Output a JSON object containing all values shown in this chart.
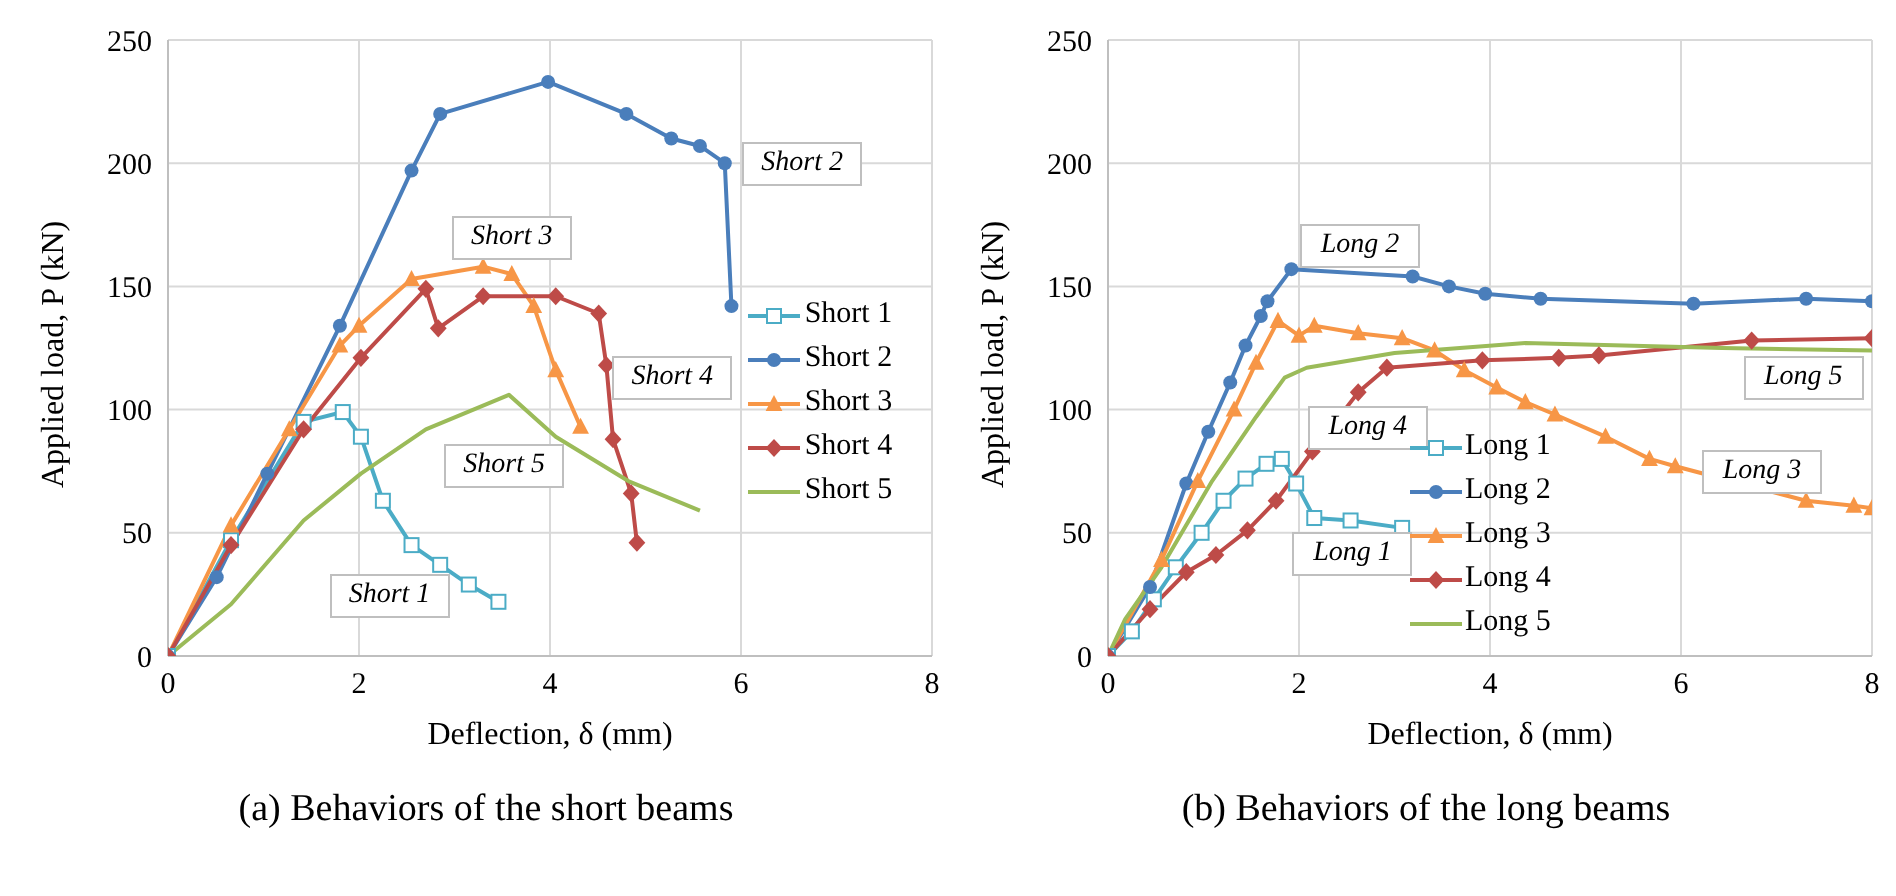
{
  "chart_data": [
    {
      "type": "line",
      "title": "(a)  Behaviors of the short beams",
      "xlabel": "Deflection, δ (mm)",
      "ylabel": "Applied load, P (kN)",
      "xlim": [
        0,
        8
      ],
      "xticks": [
        0,
        2,
        4,
        6,
        8
      ],
      "ylim": [
        0,
        250
      ],
      "yticks": [
        0,
        50,
        100,
        150,
        200,
        250
      ],
      "grid": true,
      "legend": "right",
      "series": [
        {
          "name": "Short 1",
          "color": "#4bacc6",
          "marker": "square",
          "x": [
            0,
            0.66,
            1.42,
            1.83,
            2.02,
            2.25,
            2.55,
            2.85,
            3.15,
            3.46
          ],
          "values": [
            0,
            47,
            95,
            99,
            89,
            63,
            45,
            37,
            29,
            22
          ]
        },
        {
          "name": "Short 2",
          "color": "#4a7ebb",
          "marker": "circle",
          "x": [
            0,
            0.51,
            1.04,
            1.8,
            2.55,
            2.85,
            3.98,
            4.8,
            5.27,
            5.57,
            5.83,
            5.9
          ],
          "values": [
            0,
            32,
            74,
            134,
            197,
            220,
            233,
            220,
            210,
            207,
            200,
            142
          ]
        },
        {
          "name": "Short 3",
          "color": "#f79646",
          "marker": "triangle",
          "x": [
            0,
            0.66,
            1.27,
            1.8,
            2,
            2.55,
            3.3,
            3.6,
            3.83,
            4.06,
            4.32
          ],
          "values": [
            0,
            53,
            92,
            126,
            134,
            153,
            158,
            155,
            142,
            116,
            93
          ]
        },
        {
          "name": "Short 4",
          "color": "#be4b48",
          "marker": "diamond",
          "x": [
            0,
            0.66,
            1.42,
            2.02,
            2.7,
            2.83,
            3.3,
            4.06,
            4.51,
            4.59,
            4.66,
            4.85,
            4.91
          ],
          "values": [
            0,
            45,
            92,
            121,
            149,
            133,
            146,
            146,
            139,
            118,
            88,
            66,
            46
          ]
        },
        {
          "name": "Short 5",
          "color": "#9bbb59",
          "marker": "none",
          "x": [
            0,
            0.66,
            1.42,
            2.02,
            2.7,
            3.57,
            4.06,
            4.82,
            5.57
          ],
          "values": [
            0,
            21,
            55,
            74,
            92,
            106,
            89,
            71,
            59
          ]
        }
      ],
      "annotations": [
        "Short 2",
        "Short 3",
        "Short 4",
        "Short 5",
        "Short 1"
      ]
    },
    {
      "type": "line",
      "title": "(b)  Behaviors of the long beams",
      "xlabel": "Deflection, δ (mm)",
      "ylabel": "Applied load, P (kN)",
      "xlim": [
        0,
        8
      ],
      "xticks": [
        0,
        2,
        4,
        6,
        8
      ],
      "ylim": [
        0,
        250
      ],
      "yticks": [
        0,
        50,
        100,
        150,
        200,
        250
      ],
      "grid": true,
      "legend": "bottom",
      "series": [
        {
          "name": "Long 1",
          "color": "#4bacc6",
          "marker": "square",
          "x": [
            0,
            0.25,
            0.48,
            0.71,
            0.98,
            1.21,
            1.44,
            1.66,
            1.82,
            1.97,
            2.16,
            2.54,
            3.08
          ],
          "values": [
            0,
            10,
            23,
            36,
            50,
            63,
            72,
            78,
            80,
            70,
            56,
            55,
            52
          ]
        },
        {
          "name": "Long 2",
          "color": "#4a7ebb",
          "marker": "circle",
          "x": [
            0,
            0.44,
            0.82,
            1.05,
            1.28,
            1.44,
            1.6,
            1.67,
            1.92,
            3.19,
            3.57,
            3.95,
            4.53,
            6.13,
            7.31,
            8
          ],
          "values": [
            0,
            28,
            70,
            91,
            111,
            126,
            138,
            144,
            157,
            154,
            150,
            147,
            145,
            143,
            145,
            144
          ]
        },
        {
          "name": "Long 3",
          "color": "#f79646",
          "marker": "triangle",
          "x": [
            0,
            0.56,
            0.94,
            1.32,
            1.55,
            1.78,
            2,
            2.16,
            2.62,
            3.08,
            3.42,
            3.73,
            4.07,
            4.37,
            4.68,
            5.21,
            5.67,
            5.94,
            7.31,
            7.81,
            8
          ],
          "values": [
            0,
            39,
            71,
            100,
            119,
            136,
            130,
            134,
            131,
            129,
            124,
            116,
            109,
            103,
            98,
            89,
            80,
            77,
            63,
            61,
            60
          ]
        },
        {
          "name": "Long 4",
          "color": "#be4b48",
          "marker": "diamond",
          "x": [
            0,
            0.44,
            0.82,
            1.13,
            1.46,
            1.76,
            2.14,
            2.62,
            2.92,
            3.92,
            4.72,
            5.14,
            6.74,
            8
          ],
          "values": [
            0,
            19,
            34,
            41,
            51,
            63,
            83,
            107,
            117,
            120,
            121,
            122,
            128,
            129
          ]
        },
        {
          "name": "Long 5",
          "color": "#9bbb59",
          "marker": "none",
          "x": [
            0,
            0.18,
            0.56,
            1.09,
            1.55,
            1.85,
            2.08,
            3,
            4.37,
            6.43,
            8
          ],
          "values": [
            0,
            15,
            36,
            71,
            97,
            113,
            117,
            123,
            127,
            125,
            124
          ]
        }
      ],
      "annotations": [
        "Long 2",
        "Long 4",
        "Long 1",
        "Long 5",
        "Long 3"
      ]
    }
  ]
}
